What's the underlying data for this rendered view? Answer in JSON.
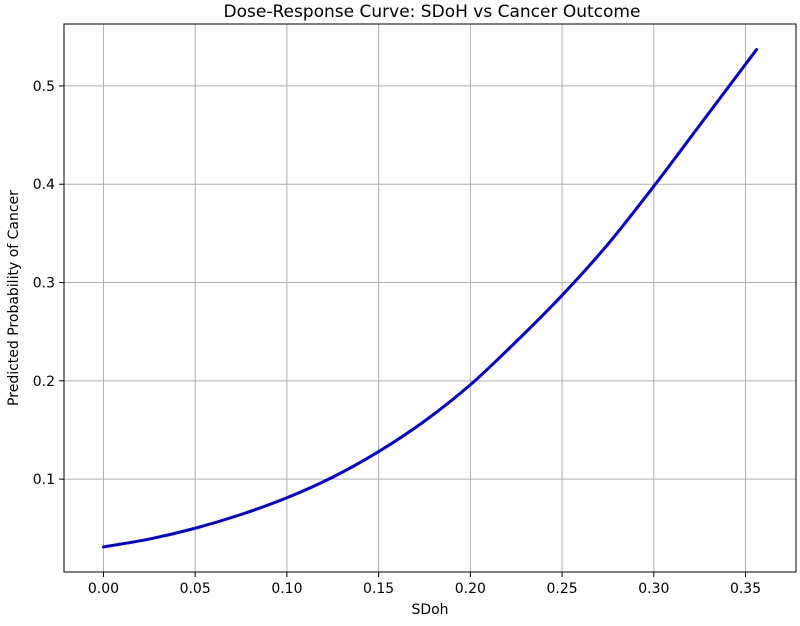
{
  "chart_data": {
    "type": "line",
    "title": "Dose-Response Curve: SDoH vs Cancer Outcome",
    "xlabel": "SDoh",
    "ylabel": "Predicted Probability of Cancer",
    "xlim": [
      -0.0215,
      0.3775
    ],
    "ylim": [
      0.0055,
      0.563
    ],
    "x_ticks": [
      "0.00",
      "0.05",
      "0.10",
      "0.15",
      "0.20",
      "0.25",
      "0.30",
      "0.35"
    ],
    "x_tick_values": [
      0.0,
      0.05,
      0.1,
      0.15,
      0.2,
      0.25,
      0.3,
      0.35
    ],
    "y_ticks": [
      "0.1",
      "0.2",
      "0.3",
      "0.4",
      "0.5"
    ],
    "y_tick_values": [
      0.1,
      0.2,
      0.3,
      0.4,
      0.5
    ],
    "grid": true,
    "series": [
      {
        "color": "#0000dd",
        "x": [
          0.0,
          0.025,
          0.05,
          0.075,
          0.1,
          0.125,
          0.15,
          0.175,
          0.2,
          0.225,
          0.25,
          0.275,
          0.3,
          0.325,
          0.356
        ],
        "y": [
          0.031,
          0.039,
          0.05,
          0.064,
          0.081,
          0.102,
          0.128,
          0.159,
          0.196,
          0.24,
          0.287,
          0.339,
          0.398,
          0.46,
          0.537
        ]
      }
    ]
  }
}
